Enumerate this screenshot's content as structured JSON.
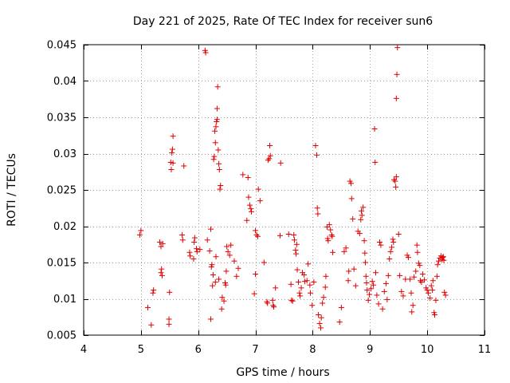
{
  "chart_data": {
    "type": "scatter",
    "title": "Day 221 of 2025, Rate Of TEC Index for receiver sun6",
    "xlabel": "GPS time / hours",
    "ylabel": "ROTI / TECUs",
    "xlim": [
      4,
      11
    ],
    "ylim": [
      0.005,
      0.045
    ],
    "xticks": [
      4,
      5,
      6,
      7,
      8,
      9,
      10,
      11
    ],
    "xtick_labels": [
      "4",
      "5",
      "6",
      "7",
      "8",
      "9",
      "10",
      "11"
    ],
    "yticks": [
      0.005,
      0.01,
      0.015,
      0.02,
      0.025,
      0.03,
      0.035,
      0.04,
      0.045
    ],
    "ytick_labels": [
      "0.005",
      "0.01",
      "0.015",
      "0.02",
      "0.025",
      "0.03",
      "0.035",
      "0.04",
      "0.045"
    ],
    "grid": true,
    "marker": "+",
    "color": "#e00000",
    "series": [
      {
        "name": "ROTI",
        "points": [
          [
            4.98,
            0.0188
          ],
          [
            5.0,
            0.0194
          ],
          [
            5.12,
            0.0088
          ],
          [
            5.18,
            0.0064
          ],
          [
            5.22,
            0.0112
          ],
          [
            5.21,
            0.0108
          ],
          [
            5.33,
            0.0178
          ],
          [
            5.35,
            0.0172
          ],
          [
            5.36,
            0.0141
          ],
          [
            5.35,
            0.0136
          ],
          [
            5.37,
            0.0132
          ],
          [
            5.38,
            0.0176
          ],
          [
            5.5,
            0.0109
          ],
          [
            5.49,
            0.0072
          ],
          [
            5.49,
            0.0065
          ],
          [
            5.52,
            0.0288
          ],
          [
            5.53,
            0.0278
          ],
          [
            5.54,
            0.0301
          ],
          [
            5.55,
            0.0306
          ],
          [
            5.56,
            0.0324
          ],
          [
            5.56,
            0.0287
          ],
          [
            5.72,
            0.0188
          ],
          [
            5.73,
            0.0181
          ],
          [
            5.75,
            0.0283
          ],
          [
            5.85,
            0.0164
          ],
          [
            5.86,
            0.0159
          ],
          [
            5.92,
            0.0155
          ],
          [
            5.93,
            0.0178
          ],
          [
            5.94,
            0.0184
          ],
          [
            5.97,
            0.0169
          ],
          [
            5.98,
            0.0165
          ],
          [
            6.03,
            0.0168
          ],
          [
            6.12,
            0.0442
          ],
          [
            6.13,
            0.0439
          ],
          [
            6.16,
            0.0181
          ],
          [
            6.2,
            0.0166
          ],
          [
            6.22,
            0.0072
          ],
          [
            6.22,
            0.0196
          ],
          [
            6.23,
            0.0144
          ],
          [
            6.24,
            0.0147
          ],
          [
            6.25,
            0.0118
          ],
          [
            6.26,
            0.0133
          ],
          [
            6.27,
            0.0292
          ],
          [
            6.28,
            0.0296
          ],
          [
            6.29,
            0.0331
          ],
          [
            6.3,
            0.0315
          ],
          [
            6.31,
            0.0337
          ],
          [
            6.32,
            0.0344
          ],
          [
            6.33,
            0.0347
          ],
          [
            6.33,
            0.0362
          ],
          [
            6.34,
            0.0392
          ],
          [
            6.35,
            0.0305
          ],
          [
            6.36,
            0.0286
          ],
          [
            6.37,
            0.0278
          ],
          [
            6.38,
            0.0251
          ],
          [
            6.39,
            0.0256
          ],
          [
            6.3,
            0.0123
          ],
          [
            6.31,
            0.0158
          ],
          [
            6.36,
            0.0127
          ],
          [
            6.42,
            0.0102
          ],
          [
            6.41,
            0.0086
          ],
          [
            6.45,
            0.0097
          ],
          [
            6.47,
            0.0122
          ],
          [
            6.48,
            0.0119
          ],
          [
            6.49,
            0.0138
          ],
          [
            6.5,
            0.0172
          ],
          [
            6.52,
            0.0165
          ],
          [
            6.55,
            0.016
          ],
          [
            6.57,
            0.0174
          ],
          [
            6.63,
            0.0152
          ],
          [
            6.67,
            0.0131
          ],
          [
            6.7,
            0.0142
          ],
          [
            6.78,
            0.0271
          ],
          [
            6.85,
            0.0208
          ],
          [
            6.87,
            0.0267
          ],
          [
            6.88,
            0.024
          ],
          [
            6.9,
            0.0229
          ],
          [
            6.92,
            0.0224
          ],
          [
            6.93,
            0.022
          ],
          [
            7.0,
            0.0194
          ],
          [
            7.02,
            0.0188
          ],
          [
            7.04,
            0.0186
          ],
          [
            7.0,
            0.0134
          ],
          [
            6.98,
            0.0107
          ],
          [
            7.05,
            0.0251
          ],
          [
            7.08,
            0.0235
          ],
          [
            7.15,
            0.015
          ],
          [
            7.2,
            0.0096
          ],
          [
            7.21,
            0.0094
          ],
          [
            7.22,
            0.0291
          ],
          [
            7.24,
            0.0293
          ],
          [
            7.26,
            0.0297
          ],
          [
            7.25,
            0.0311
          ],
          [
            7.3,
            0.0098
          ],
          [
            7.31,
            0.0091
          ],
          [
            7.32,
            0.0089
          ],
          [
            7.35,
            0.0115
          ],
          [
            7.43,
            0.0187
          ],
          [
            7.44,
            0.0287
          ],
          [
            7.58,
            0.0189
          ],
          [
            7.62,
            0.012
          ],
          [
            7.63,
            0.0098
          ],
          [
            7.65,
            0.0097
          ],
          [
            7.67,
            0.0188
          ],
          [
            7.68,
            0.0181
          ],
          [
            7.7,
            0.0167
          ],
          [
            7.71,
            0.0162
          ],
          [
            7.72,
            0.0175
          ],
          [
            7.73,
            0.014
          ],
          [
            7.75,
            0.0123
          ],
          [
            7.77,
            0.0108
          ],
          [
            7.78,
            0.0104
          ],
          [
            7.8,
            0.0115
          ],
          [
            7.82,
            0.0136
          ],
          [
            7.85,
            0.0133
          ],
          [
            7.86,
            0.0124
          ],
          [
            7.9,
            0.0125
          ],
          [
            7.92,
            0.0148
          ],
          [
            7.95,
            0.0119
          ],
          [
            7.96,
            0.0108
          ],
          [
            7.99,
            0.0091
          ],
          [
            8.02,
            0.0123
          ],
          [
            8.05,
            0.0311
          ],
          [
            8.07,
            0.0298
          ],
          [
            8.08,
            0.0225
          ],
          [
            8.09,
            0.0217
          ],
          [
            8.1,
            0.0078
          ],
          [
            8.12,
            0.0066
          ],
          [
            8.14,
            0.006
          ],
          [
            8.15,
            0.0074
          ],
          [
            8.17,
            0.0094
          ],
          [
            8.19,
            0.0102
          ],
          [
            8.22,
            0.0116
          ],
          [
            8.23,
            0.0131
          ],
          [
            8.25,
            0.0199
          ],
          [
            8.26,
            0.0183
          ],
          [
            8.27,
            0.018
          ],
          [
            8.29,
            0.0202
          ],
          [
            8.31,
            0.0195
          ],
          [
            8.33,
            0.0188
          ],
          [
            8.34,
            0.0186
          ],
          [
            8.35,
            0.0164
          ],
          [
            8.47,
            0.0068
          ],
          [
            8.5,
            0.0088
          ],
          [
            8.55,
            0.0165
          ],
          [
            8.58,
            0.017
          ],
          [
            8.62,
            0.0125
          ],
          [
            8.63,
            0.0138
          ],
          [
            8.65,
            0.0262
          ],
          [
            8.67,
            0.0259
          ],
          [
            8.68,
            0.0238
          ],
          [
            8.7,
            0.021
          ],
          [
            8.72,
            0.0141
          ],
          [
            8.75,
            0.0118
          ],
          [
            8.79,
            0.0193
          ],
          [
            8.82,
            0.019
          ],
          [
            8.84,
            0.0209
          ],
          [
            8.85,
            0.0221
          ],
          [
            8.86,
            0.0215
          ],
          [
            8.88,
            0.0226
          ],
          [
            8.9,
            0.018
          ],
          [
            8.91,
            0.0163
          ],
          [
            8.92,
            0.015
          ],
          [
            8.93,
            0.0131
          ],
          [
            8.94,
            0.0122
          ],
          [
            8.95,
            0.0112
          ],
          [
            8.97,
            0.0098
          ],
          [
            8.99,
            0.0106
          ],
          [
            9.02,
            0.0114
          ],
          [
            9.04,
            0.0124
          ],
          [
            9.06,
            0.0119
          ],
          [
            9.08,
            0.0334
          ],
          [
            9.09,
            0.0288
          ],
          [
            9.1,
            0.0136
          ],
          [
            9.12,
            0.0105
          ],
          [
            9.15,
            0.0093
          ],
          [
            9.17,
            0.0178
          ],
          [
            9.19,
            0.0174
          ],
          [
            9.22,
            0.0086
          ],
          [
            9.25,
            0.011
          ],
          [
            9.28,
            0.0121
          ],
          [
            9.3,
            0.0099
          ],
          [
            9.32,
            0.0132
          ],
          [
            9.34,
            0.0155
          ],
          [
            9.36,
            0.0165
          ],
          [
            9.38,
            0.0171
          ],
          [
            9.4,
            0.0182
          ],
          [
            9.41,
            0.0178
          ],
          [
            9.42,
            0.0264
          ],
          [
            9.44,
            0.0262
          ],
          [
            9.45,
            0.0254
          ],
          [
            9.46,
            0.0268
          ],
          [
            9.46,
            0.0376
          ],
          [
            9.47,
            0.0409
          ],
          [
            9.48,
            0.0446
          ],
          [
            9.5,
            0.0189
          ],
          [
            9.52,
            0.0132
          ],
          [
            9.55,
            0.011
          ],
          [
            9.58,
            0.0104
          ],
          [
            9.62,
            0.0127
          ],
          [
            9.65,
            0.016
          ],
          [
            9.67,
            0.0157
          ],
          [
            9.7,
            0.0127
          ],
          [
            9.72,
            0.0108
          ],
          [
            9.73,
            0.0082
          ],
          [
            9.75,
            0.0091
          ],
          [
            9.77,
            0.013
          ],
          [
            9.8,
            0.0138
          ],
          [
            9.82,
            0.0174
          ],
          [
            9.83,
            0.0164
          ],
          [
            9.85,
            0.0149
          ],
          [
            9.87,
            0.0146
          ],
          [
            9.88,
            0.0125
          ],
          [
            9.9,
            0.0123
          ],
          [
            9.92,
            0.0134
          ],
          [
            9.95,
            0.0126
          ],
          [
            9.98,
            0.0115
          ],
          [
            10.0,
            0.0112
          ],
          [
            10.02,
            0.0108
          ],
          [
            10.05,
            0.0101
          ],
          [
            10.07,
            0.0118
          ],
          [
            10.09,
            0.0112
          ],
          [
            10.1,
            0.0125
          ],
          [
            10.12,
            0.0081
          ],
          [
            10.13,
            0.0078
          ],
          [
            10.15,
            0.0098
          ],
          [
            10.17,
            0.0131
          ],
          [
            10.18,
            0.0147
          ],
          [
            10.2,
            0.0152
          ],
          [
            10.22,
            0.0156
          ],
          [
            10.24,
            0.0159
          ],
          [
            10.26,
            0.0154
          ],
          [
            10.27,
            0.0157
          ],
          [
            10.28,
            0.0158
          ],
          [
            10.29,
            0.0153
          ],
          [
            10.3,
            0.0109
          ],
          [
            10.32,
            0.0105
          ]
        ]
      }
    ]
  }
}
